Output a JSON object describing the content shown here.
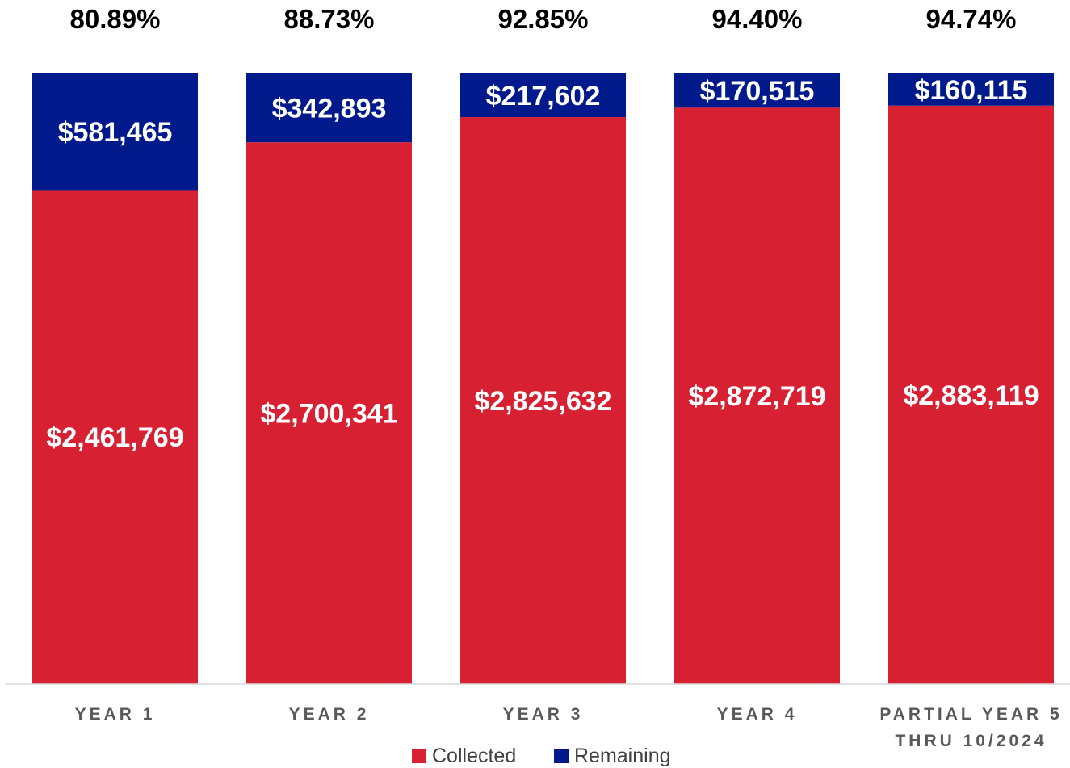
{
  "chart_data": {
    "type": "bar",
    "stacked": true,
    "title": "",
    "xlabel": "",
    "ylabel": "",
    "categories": [
      [
        "YEAR 1"
      ],
      [
        "YEAR 2"
      ],
      [
        "YEAR 3"
      ],
      [
        "YEAR 4"
      ],
      [
        "PARTIAL YEAR 5",
        "THRU 10/2024"
      ]
    ],
    "percent_labels": [
      "80.89%",
      "88.73%",
      "92.85%",
      "94.40%",
      "94.74%"
    ],
    "series": [
      {
        "name": "Collected",
        "color": "#d82033",
        "values": [
          2461769,
          2700341,
          2825632,
          2872719,
          2883119
        ],
        "labels": [
          "$2,461,769",
          "$2,700,341",
          "$2,825,632",
          "$2,872,719",
          "$2,883,119"
        ]
      },
      {
        "name": "Remaining",
        "color": "#011a8b",
        "values": [
          581465,
          342893,
          217602,
          170515,
          160115
        ],
        "labels": [
          "$581,465",
          "$342,893",
          "$217,602",
          "$170,515",
          "$160,115"
        ]
      }
    ],
    "ylim": [
      0,
      3043234
    ],
    "grid": false,
    "legend": "bottom"
  }
}
